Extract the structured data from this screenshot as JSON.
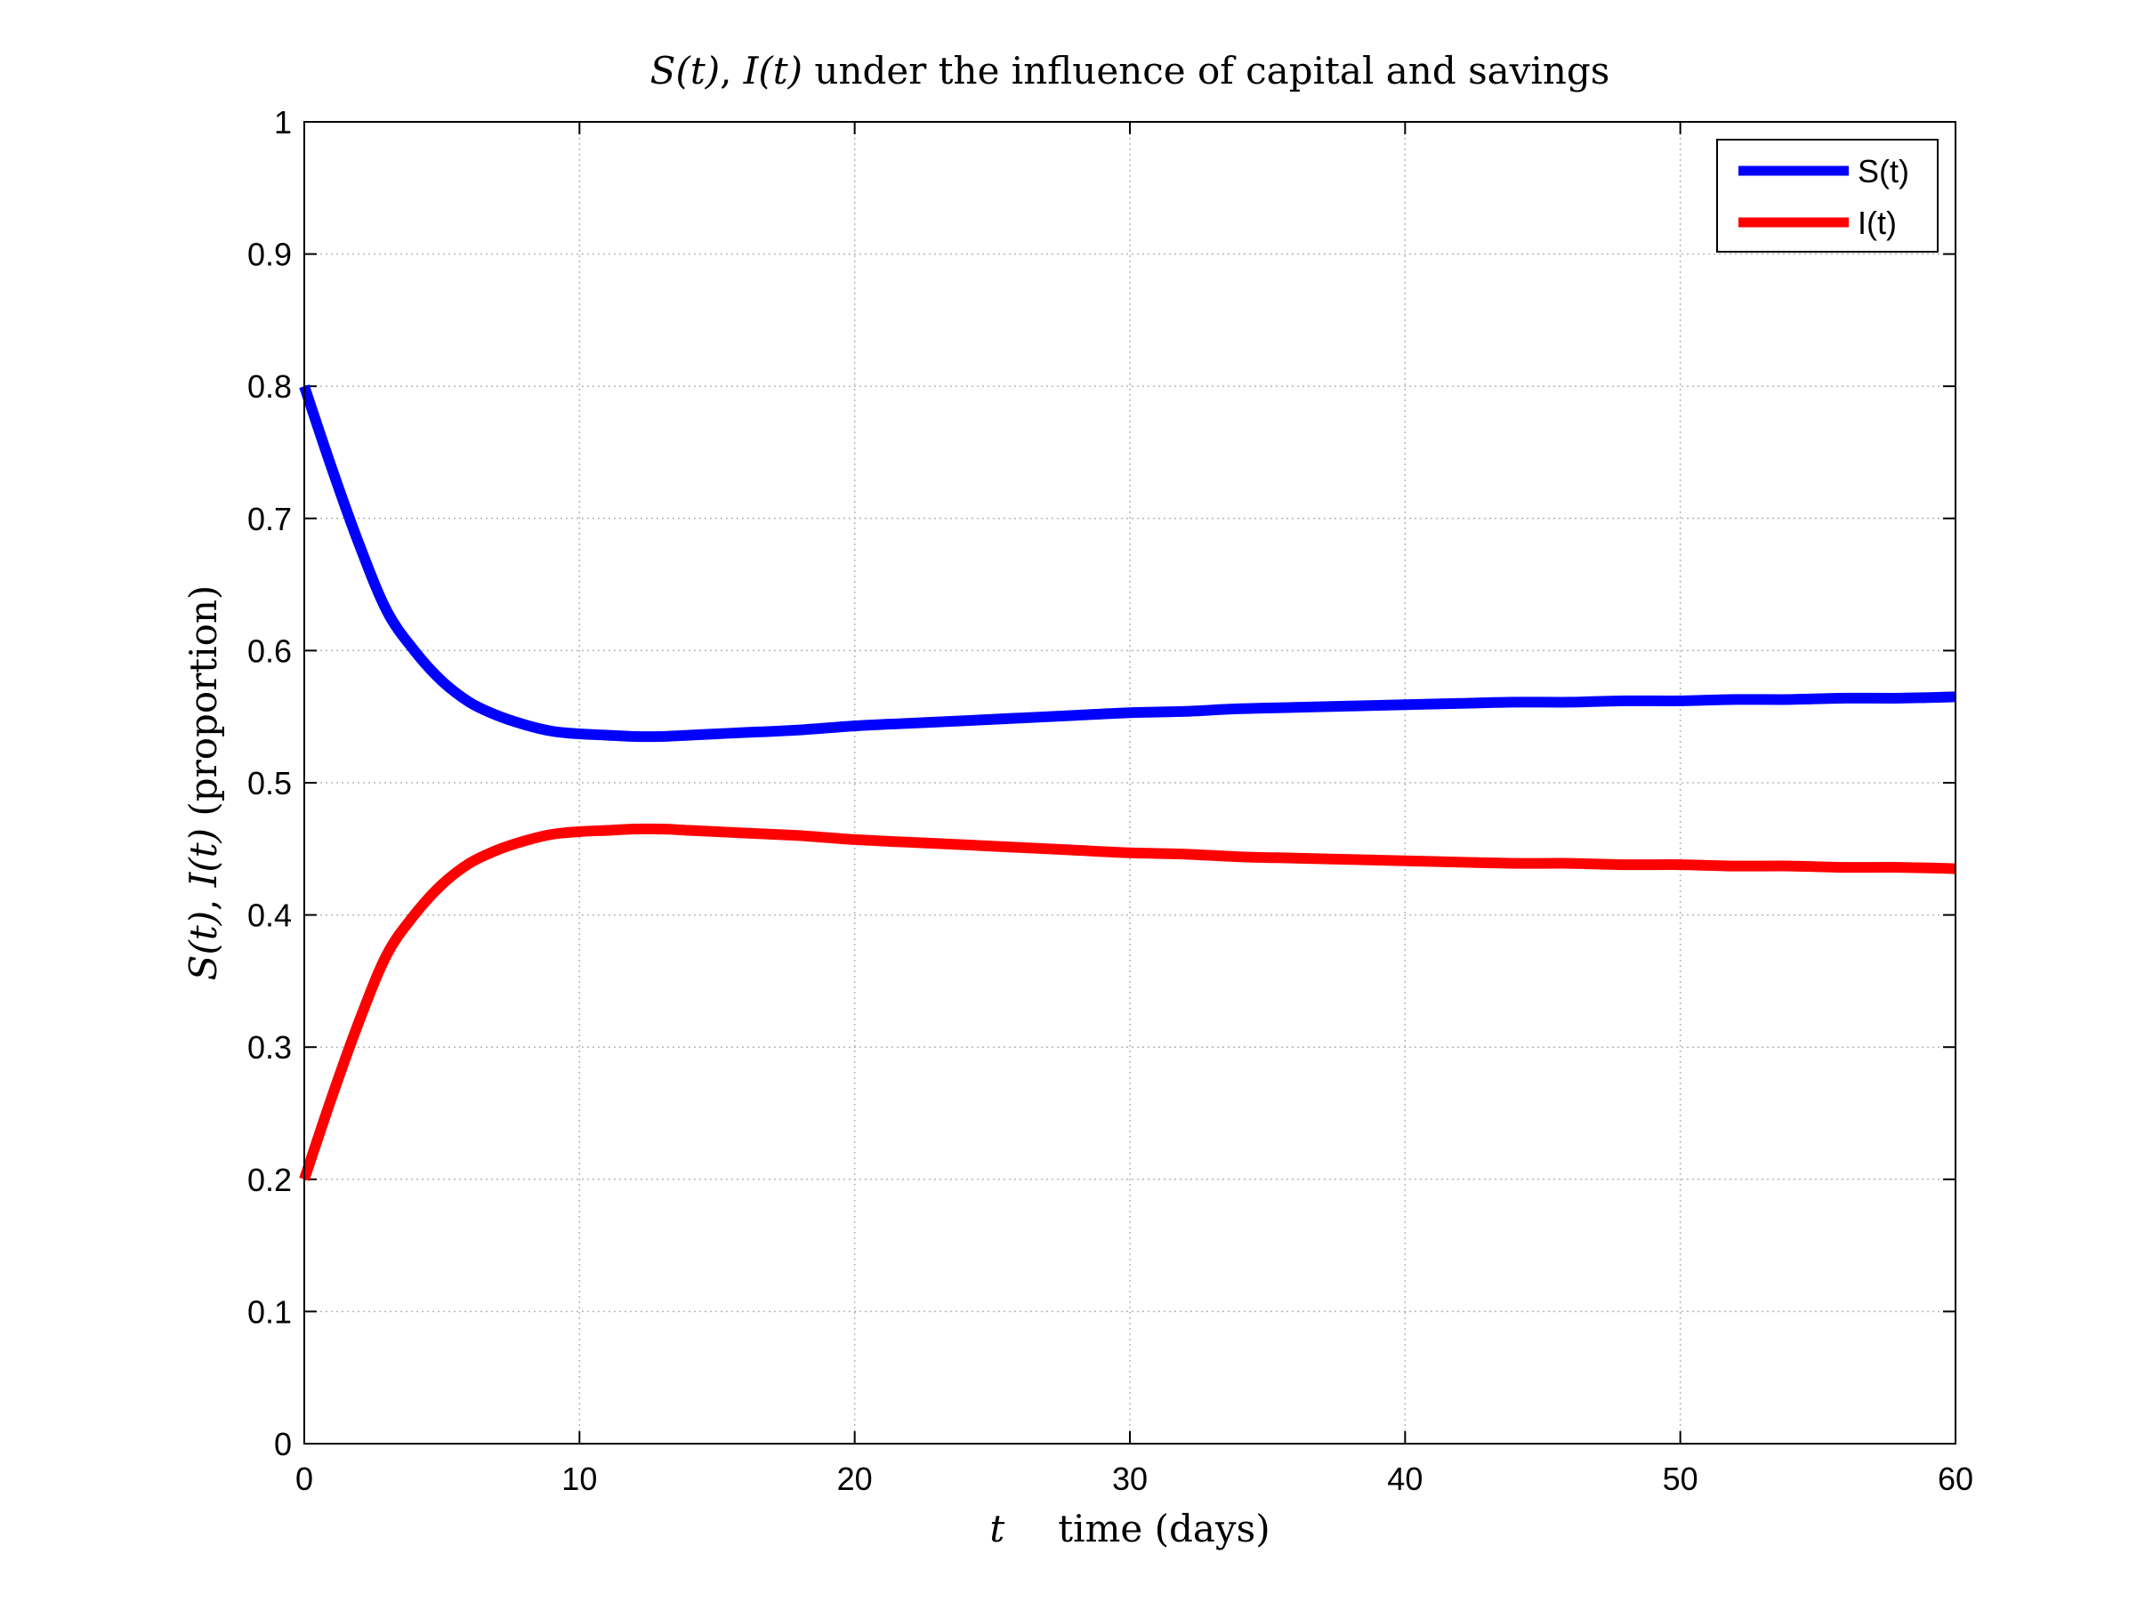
{
  "chart_data": {
    "type": "line",
    "title": {
      "s": "S(t)",
      "sep": ", ",
      "i": "I(t)",
      "rest": " under the influence of capital and savings"
    },
    "xlabel": {
      "var": "t",
      "text": "time (days)"
    },
    "ylabel": {
      "s": "S(t)",
      "sep": ", ",
      "i": "I(t)",
      "rest": " (proportion)"
    },
    "xlim": [
      0,
      60
    ],
    "ylim": [
      0,
      1
    ],
    "xticks": [
      0,
      10,
      20,
      30,
      40,
      50,
      60
    ],
    "yticks": [
      0,
      0.1,
      0.2,
      0.3,
      0.4,
      0.5,
      0.6,
      0.7,
      0.8,
      0.9,
      1
    ],
    "xtick_labels": [
      "0",
      "10",
      "20",
      "30",
      "40",
      "50",
      "60"
    ],
    "ytick_labels": [
      "0",
      "0.1",
      "0.2",
      "0.3",
      "0.4",
      "0.5",
      "0.6",
      "0.7",
      "0.8",
      "0.9",
      "1"
    ],
    "grid": true,
    "legend_position": "top-right",
    "x": [
      0,
      1,
      2,
      3,
      4,
      5,
      6,
      7,
      8,
      9,
      10,
      11,
      12,
      13,
      14,
      15,
      16,
      18,
      20,
      22,
      24,
      26,
      28,
      30,
      32,
      34,
      36,
      38,
      40,
      42,
      44,
      46,
      48,
      50,
      52,
      54,
      56,
      58,
      60
    ],
    "series": [
      {
        "name": "S(t)",
        "color": "#0000ff",
        "values": [
          0.8,
          0.738,
          0.68,
          0.63,
          0.6,
          0.577,
          0.561,
          0.551,
          0.544,
          0.539,
          0.537,
          0.536,
          0.535,
          0.535,
          0.536,
          0.537,
          0.538,
          0.54,
          0.543,
          0.545,
          0.547,
          0.549,
          0.551,
          0.553,
          0.554,
          0.556,
          0.557,
          0.558,
          0.559,
          0.56,
          0.561,
          0.561,
          0.562,
          0.562,
          0.563,
          0.563,
          0.564,
          0.564,
          0.565
        ]
      },
      {
        "name": "I(t)",
        "color": "#ff0000",
        "values": [
          0.2,
          0.262,
          0.32,
          0.37,
          0.4,
          0.423,
          0.439,
          0.449,
          0.456,
          0.461,
          0.463,
          0.464,
          0.465,
          0.465,
          0.464,
          0.463,
          0.462,
          0.46,
          0.457,
          0.455,
          0.453,
          0.451,
          0.449,
          0.447,
          0.446,
          0.444,
          0.443,
          0.442,
          0.441,
          0.44,
          0.439,
          0.439,
          0.438,
          0.438,
          0.437,
          0.437,
          0.436,
          0.436,
          0.435
        ]
      }
    ]
  }
}
